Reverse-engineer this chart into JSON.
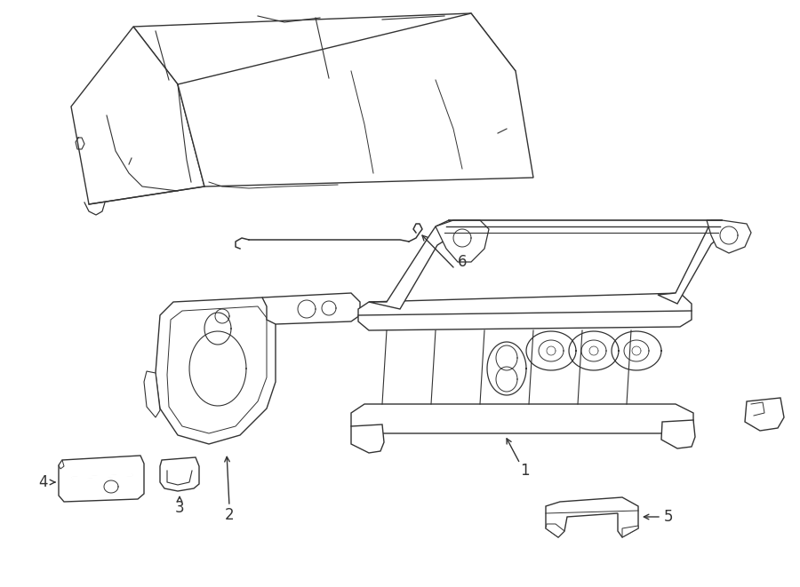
{
  "background_color": "#ffffff",
  "line_color": "#333333",
  "line_width": 1.0,
  "figsize": [
    9.0,
    6.61
  ],
  "dpi": 100
}
